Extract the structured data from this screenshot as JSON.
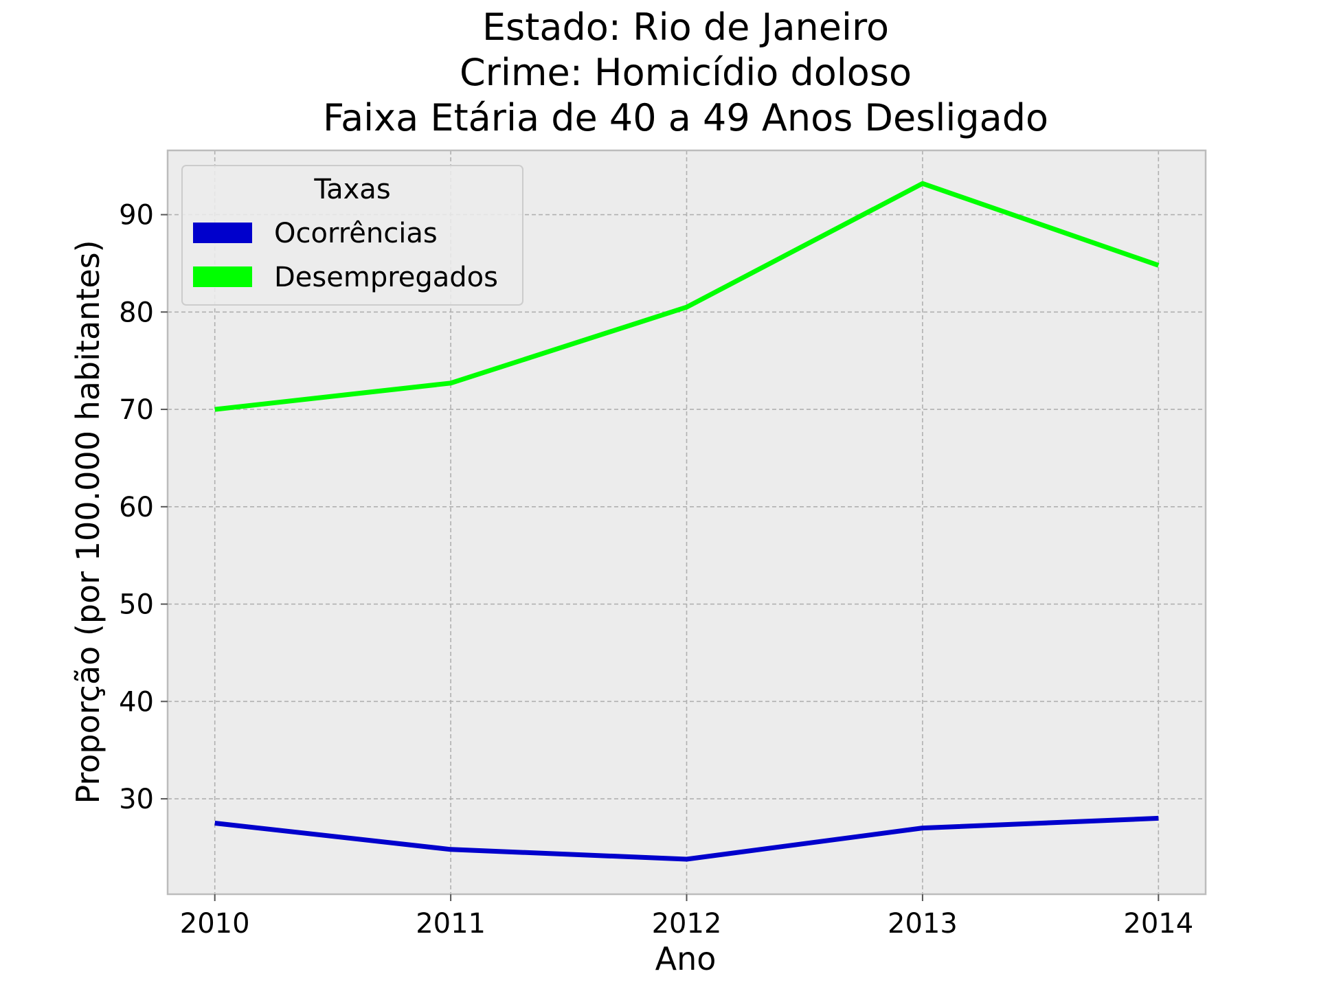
{
  "chart_data": {
    "type": "line",
    "title_lines": [
      "Estado: Rio de Janeiro",
      "Crime: Homicídio doloso",
      "Faixa Etária de 40 a 49 Anos   Desligado"
    ],
    "xlabel": "Ano",
    "ylabel": "Proporção (por 100.000 habitantes)",
    "x": [
      2010,
      2011,
      2012,
      2013,
      2014
    ],
    "x_tick_labels": [
      "2010",
      "2011",
      "2012",
      "2013",
      "2014"
    ],
    "xlim": [
      2009.8,
      2014.2
    ],
    "ylim": [
      20.2,
      96.6
    ],
    "y_ticks": [
      30,
      40,
      50,
      60,
      70,
      80,
      90
    ],
    "y_tick_labels": [
      "30",
      "40",
      "50",
      "60",
      "70",
      "80",
      "90"
    ],
    "grid": true,
    "legend": {
      "title": "Taxas",
      "placement": "upper-left"
    },
    "series": [
      {
        "name": "Ocorrências",
        "color": "#0000cc",
        "values": [
          27.5,
          24.8,
          23.8,
          27.0,
          28.0
        ]
      },
      {
        "name": "Desempregados",
        "color": "#00ff00",
        "values": [
          70.0,
          72.7,
          80.5,
          93.2,
          84.8
        ]
      }
    ],
    "colors": {
      "plot_background": "#ececec",
      "frame": "#bcbcbc"
    }
  }
}
